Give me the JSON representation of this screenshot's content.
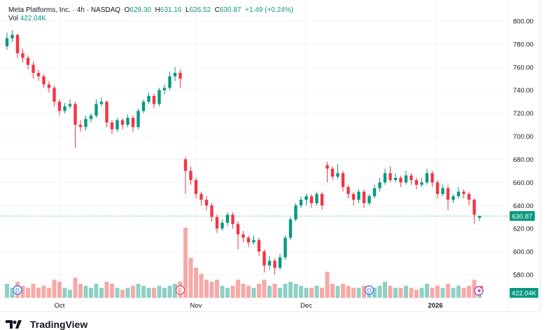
{
  "header": {
    "symbol": "Meta Platforms, Inc. · 4h · NASDAQ",
    "open_label": "O",
    "open": "629.30",
    "high_label": "H",
    "high": "631.16",
    "low_label": "L",
    "low": "626.52",
    "close_label": "C",
    "close": "630.87",
    "change": "+1.49 (+0.24%)",
    "vol_label": "Vol",
    "vol": "422.04K"
  },
  "branding": {
    "logo_text": "TradingView"
  },
  "colors": {
    "up": "#089981",
    "down": "#f23645",
    "up_vol": "#8fd0c5",
    "down_vol": "#f7a9a7",
    "grid": "#f0f3fa"
  },
  "events": [
    {
      "label": "D",
      "index": 2
    },
    {
      "label": "E",
      "index": 33
    },
    {
      "label": "D",
      "index": 69
    }
  ],
  "chart_data": {
    "type": "candlestick",
    "title": "Meta Platforms, Inc. · 4h · NASDAQ",
    "y_ticks": [
      "800.00",
      "780.00",
      "760.00",
      "740.00",
      "720.00",
      "700.00",
      "680.00",
      "660.00",
      "640.00",
      "620.00",
      "600.00",
      "580.00"
    ],
    "ylim": [
      580,
      800
    ],
    "x_ticks": [
      {
        "label": "Oct",
        "index": 10
      },
      {
        "label": "Nov",
        "index": 36
      },
      {
        "label": "Dec",
        "index": 57
      },
      {
        "label": "2026",
        "index": 82
      }
    ],
    "last_price": "630.87",
    "last_volume": "422.04K",
    "candles": [
      [
        778,
        790,
        775,
        785,
        700
      ],
      [
        785,
        792,
        782,
        788,
        500
      ],
      [
        788,
        789,
        768,
        772,
        800
      ],
      [
        772,
        776,
        764,
        768,
        600
      ],
      [
        768,
        770,
        758,
        762,
        500
      ],
      [
        762,
        765,
        750,
        755,
        700
      ],
      [
        755,
        758,
        748,
        752,
        500
      ],
      [
        752,
        754,
        742,
        745,
        600
      ],
      [
        745,
        748,
        738,
        742,
        500
      ],
      [
        742,
        744,
        726,
        730,
        900
      ],
      [
        730,
        732,
        718,
        722,
        800
      ],
      [
        722,
        729,
        720,
        726,
        500
      ],
      [
        726,
        732,
        724,
        728,
        400
      ],
      [
        728,
        730,
        690,
        710,
        1000
      ],
      [
        710,
        714,
        704,
        708,
        700
      ],
      [
        708,
        718,
        705,
        715,
        600
      ],
      [
        715,
        720,
        712,
        718,
        500
      ],
      [
        718,
        732,
        716,
        728,
        700
      ],
      [
        728,
        734,
        726,
        730,
        500
      ],
      [
        730,
        731,
        708,
        712,
        800
      ],
      [
        712,
        714,
        702,
        706,
        700
      ],
      [
        706,
        716,
        704,
        714,
        500
      ],
      [
        714,
        716,
        706,
        710,
        400
      ],
      [
        710,
        719,
        708,
        716,
        500
      ],
      [
        716,
        718,
        704,
        708,
        600
      ],
      [
        708,
        724,
        706,
        722,
        700
      ],
      [
        722,
        732,
        720,
        730,
        600
      ],
      [
        730,
        738,
        728,
        735,
        500
      ],
      [
        735,
        737,
        724,
        728,
        500
      ],
      [
        728,
        742,
        726,
        740,
        600
      ],
      [
        740,
        745,
        736,
        742,
        500
      ],
      [
        742,
        756,
        740,
        752,
        600
      ],
      [
        752,
        760,
        748,
        755,
        700
      ],
      [
        755,
        758,
        742,
        750,
        800
      ],
      [
        680,
        682,
        650,
        670,
        3500
      ],
      [
        670,
        674,
        658,
        662,
        2000
      ],
      [
        662,
        664,
        646,
        650,
        1500
      ],
      [
        650,
        652,
        640,
        645,
        1200
      ],
      [
        645,
        648,
        636,
        640,
        900
      ],
      [
        640,
        642,
        626,
        630,
        800
      ],
      [
        630,
        632,
        616,
        620,
        900
      ],
      [
        620,
        628,
        618,
        625,
        600
      ],
      [
        625,
        634,
        622,
        632,
        500
      ],
      [
        632,
        634,
        620,
        624,
        600
      ],
      [
        624,
        626,
        602,
        615,
        900
      ],
      [
        615,
        618,
        608,
        612,
        700
      ],
      [
        612,
        614,
        604,
        608,
        600
      ],
      [
        608,
        614,
        606,
        610,
        500
      ],
      [
        610,
        612,
        596,
        600,
        700
      ],
      [
        600,
        602,
        582,
        588,
        900
      ],
      [
        588,
        596,
        584,
        592,
        600
      ],
      [
        592,
        594,
        580,
        586,
        700
      ],
      [
        586,
        598,
        584,
        595,
        500
      ],
      [
        595,
        614,
        593,
        612,
        700
      ],
      [
        612,
        630,
        610,
        628,
        800
      ],
      [
        628,
        642,
        626,
        640,
        700
      ],
      [
        640,
        648,
        638,
        645,
        600
      ],
      [
        645,
        650,
        640,
        648,
        500
      ],
      [
        648,
        650,
        638,
        642,
        500
      ],
      [
        642,
        652,
        640,
        650,
        600
      ],
      [
        650,
        652,
        636,
        640,
        500
      ],
      [
        675,
        678,
        660,
        672,
        1300
      ],
      [
        672,
        674,
        662,
        665,
        700
      ],
      [
        665,
        676,
        663,
        668,
        600
      ],
      [
        668,
        670,
        652,
        656,
        700
      ],
      [
        656,
        658,
        646,
        650,
        600
      ],
      [
        650,
        652,
        640,
        645,
        500
      ],
      [
        645,
        654,
        642,
        652,
        500
      ],
      [
        652,
        654,
        638,
        642,
        600
      ],
      [
        642,
        650,
        640,
        648,
        500
      ],
      [
        648,
        658,
        646,
        655,
        500
      ],
      [
        655,
        664,
        652,
        660,
        600
      ],
      [
        660,
        672,
        658,
        668,
        800
      ],
      [
        668,
        674,
        660,
        662,
        600
      ],
      [
        662,
        668,
        660,
        664,
        500
      ],
      [
        664,
        666,
        656,
        660,
        500
      ],
      [
        660,
        670,
        658,
        666,
        600
      ],
      [
        666,
        668,
        658,
        662,
        500
      ],
      [
        662,
        664,
        654,
        658,
        400
      ],
      [
        658,
        664,
        656,
        660,
        500
      ],
      [
        660,
        672,
        658,
        668,
        700
      ],
      [
        668,
        670,
        656,
        660,
        500
      ],
      [
        660,
        662,
        646,
        650,
        600
      ],
      [
        650,
        658,
        648,
        655,
        500
      ],
      [
        655,
        658,
        636,
        645,
        700
      ],
      [
        645,
        650,
        642,
        648,
        500
      ],
      [
        648,
        656,
        646,
        652,
        600
      ],
      [
        652,
        654,
        646,
        650,
        500
      ],
      [
        650,
        652,
        640,
        645,
        600
      ],
      [
        645,
        646,
        624,
        632,
        900
      ],
      [
        629.3,
        631.16,
        626.52,
        630.87,
        422
      ]
    ]
  }
}
